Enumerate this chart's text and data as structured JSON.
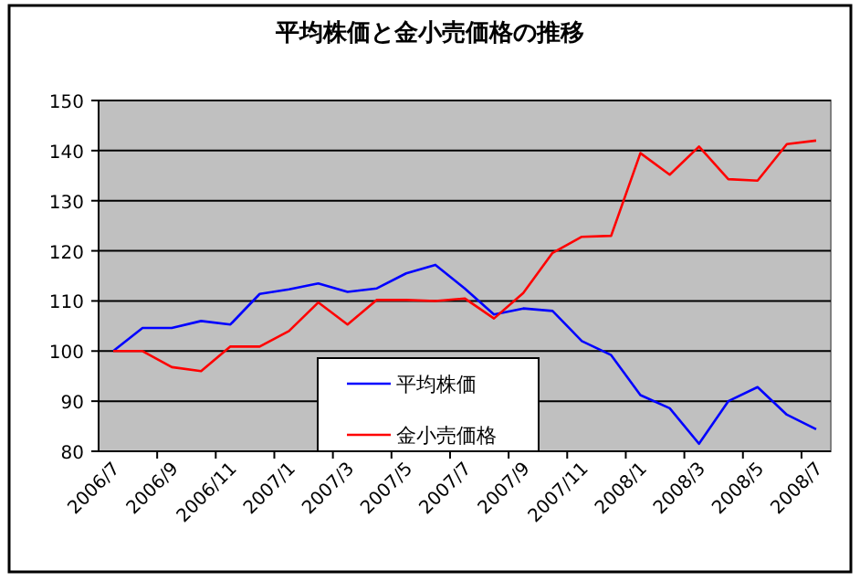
{
  "chart_data": {
    "type": "line",
    "title": "平均株価と金小売価格の推移",
    "categories": [
      "2006/7",
      null,
      "2006/9",
      null,
      "2006/11",
      null,
      "2007/1",
      null,
      "2007/3",
      null,
      "2007/5",
      null,
      "2007/7",
      null,
      "2007/9",
      null,
      "2007/11",
      null,
      "2008/1",
      null,
      "2008/3",
      null,
      "2008/5",
      null,
      "2008/7"
    ],
    "series": [
      {
        "name": "平均株価",
        "color": "#0000ff",
        "values": [
          100,
          104.6,
          104.6,
          106,
          105.3,
          111.4,
          112.3,
          113.5,
          111.8,
          112.5,
          115.5,
          117.2,
          112.5,
          107.3,
          108.5,
          108,
          102,
          99.2,
          91.2,
          88.6,
          81.5,
          90,
          92.8,
          87.3,
          84.4
        ]
      },
      {
        "name": "金小売価格",
        "color": "#ff0000",
        "values": [
          100,
          100,
          96.8,
          96,
          100.9,
          100.9,
          104,
          109.7,
          105.3,
          110.2,
          110.2,
          110,
          110.5,
          106.5,
          111.6,
          119.6,
          122.8,
          123,
          139.5,
          135.2,
          140.8,
          134.3,
          134,
          141.3,
          142
        ]
      }
    ],
    "ylim": [
      80,
      150
    ],
    "yticks": [
      80,
      90,
      100,
      110,
      120,
      130,
      140,
      150
    ],
    "grid": "y",
    "legend": "bottom",
    "marker": "none",
    "line_style": "solid"
  }
}
